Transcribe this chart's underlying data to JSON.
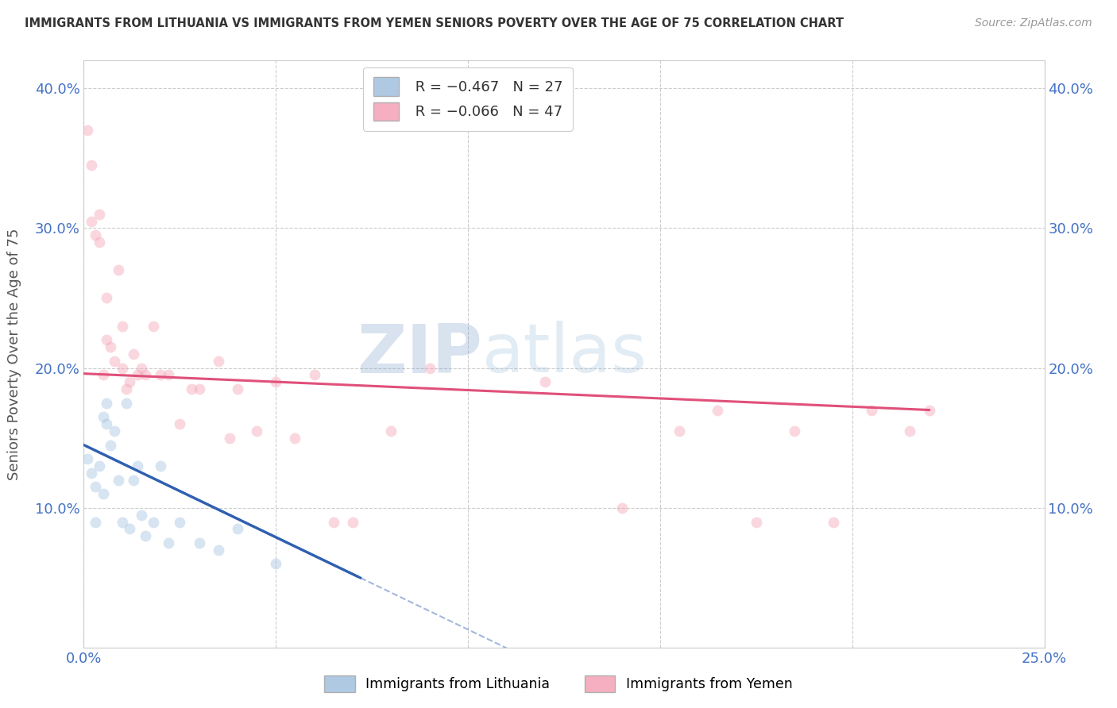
{
  "title": "IMMIGRANTS FROM LITHUANIA VS IMMIGRANTS FROM YEMEN SENIORS POVERTY OVER THE AGE OF 75 CORRELATION CHART",
  "source": "Source: ZipAtlas.com",
  "ylabel": "Seniors Poverty Over the Age of 75",
  "watermark_line1": "ZIP",
  "watermark_line2": "atlas",
  "xlim": [
    0.0,
    0.25
  ],
  "ylim": [
    0.0,
    0.42
  ],
  "xtick_positions": [
    0.0,
    0.05,
    0.1,
    0.15,
    0.2,
    0.25
  ],
  "ytick_positions": [
    0.0,
    0.1,
    0.2,
    0.3,
    0.4
  ],
  "ytick_labels": [
    "",
    "10.0%",
    "20.0%",
    "30.0%",
    "40.0%"
  ],
  "xtick_labels": [
    "0.0%",
    "",
    "",
    "",
    "",
    "25.0%"
  ],
  "lithuania_R": -0.467,
  "lithuania_N": 27,
  "yemen_R": -0.066,
  "yemen_N": 47,
  "lithuania_color": "#a8c4e0",
  "yemen_color": "#f4a7b9",
  "lithuania_line_color": "#3060b0",
  "yemen_line_color": "#e0507a",
  "legend_label_1": "Immigrants from Lithuania",
  "legend_label_2": "Immigrants from Yemen",
  "lithuania_x": [
    0.001,
    0.002,
    0.003,
    0.003,
    0.004,
    0.005,
    0.005,
    0.006,
    0.006,
    0.007,
    0.008,
    0.009,
    0.01,
    0.011,
    0.012,
    0.013,
    0.014,
    0.015,
    0.016,
    0.018,
    0.02,
    0.022,
    0.025,
    0.03,
    0.035,
    0.04,
    0.05
  ],
  "lithuania_y": [
    0.135,
    0.125,
    0.115,
    0.09,
    0.13,
    0.165,
    0.11,
    0.16,
    0.175,
    0.145,
    0.155,
    0.12,
    0.09,
    0.175,
    0.085,
    0.12,
    0.13,
    0.095,
    0.08,
    0.09,
    0.13,
    0.075,
    0.09,
    0.075,
    0.07,
    0.085,
    0.06
  ],
  "yemen_x": [
    0.001,
    0.002,
    0.002,
    0.003,
    0.004,
    0.004,
    0.005,
    0.006,
    0.006,
    0.007,
    0.008,
    0.009,
    0.01,
    0.01,
    0.011,
    0.012,
    0.013,
    0.014,
    0.015,
    0.016,
    0.018,
    0.02,
    0.022,
    0.025,
    0.028,
    0.03,
    0.035,
    0.038,
    0.04,
    0.045,
    0.05,
    0.055,
    0.06,
    0.065,
    0.07,
    0.08,
    0.09,
    0.12,
    0.14,
    0.155,
    0.165,
    0.175,
    0.185,
    0.195,
    0.205,
    0.215,
    0.22
  ],
  "yemen_y": [
    0.37,
    0.305,
    0.345,
    0.295,
    0.29,
    0.31,
    0.195,
    0.25,
    0.22,
    0.215,
    0.205,
    0.27,
    0.2,
    0.23,
    0.185,
    0.19,
    0.21,
    0.195,
    0.2,
    0.195,
    0.23,
    0.195,
    0.195,
    0.16,
    0.185,
    0.185,
    0.205,
    0.15,
    0.185,
    0.155,
    0.19,
    0.15,
    0.195,
    0.09,
    0.09,
    0.155,
    0.2,
    0.19,
    0.1,
    0.155,
    0.17,
    0.09,
    0.155,
    0.09,
    0.17,
    0.155,
    0.17
  ],
  "background_color": "#ffffff",
  "grid_color": "#c8c8c8",
  "title_color": "#333333",
  "axis_label_color": "#555555",
  "tick_label_color": "#4472c4",
  "dot_size": 100,
  "dot_alpha": 0.45,
  "lith_line_start_x": 0.0,
  "lith_line_start_y": 0.145,
  "lith_line_end_x": 0.072,
  "lith_line_end_y": 0.05,
  "yemen_line_start_x": 0.0,
  "yemen_line_start_y": 0.196,
  "yemen_line_end_x": 0.22,
  "yemen_line_end_y": 0.17
}
